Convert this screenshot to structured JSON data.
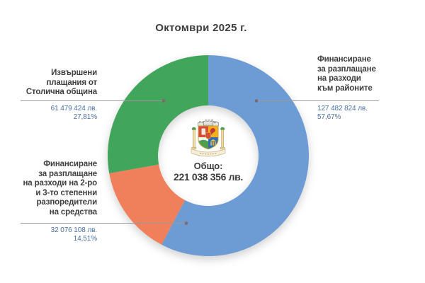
{
  "chart_data": {
    "type": "pie",
    "subtype": "donut",
    "title": "Октомври 2025 г.",
    "total_label": "Общо:",
    "total_value": 221038356,
    "total_value_text": "221 038 356 лв.",
    "start_angle_deg": 0,
    "direction": "clockwise",
    "legend_position": "outside-labels-with-leader-lines",
    "segments": [
      {
        "name": "raioni-financing",
        "label": "Финансиране за разплащане на разходи към районите",
        "label_lines": [
          "Финансиране",
          "за разплащане",
          "на разходи",
          "към районите"
        ],
        "value": 127482824,
        "value_text": "127 482 824 лв.",
        "percent": 57.67,
        "percent_text": "57,67%",
        "color": "#6D9BD3"
      },
      {
        "name": "stepenni-razporediteli-financing",
        "label": "Финансиране за разплащане на разходи на 2-ро и 3-то степенни разпоредители на средства",
        "label_lines": [
          "Финансиране",
          "за разплащане",
          "на разходи на 2-ро",
          "и 3-то степенни",
          "разпоредители",
          "на средства"
        ],
        "value": 32076108,
        "value_text": "32 076 108 лв.",
        "percent": 14.51,
        "percent_text": "14,51%",
        "color": "#F0805C"
      },
      {
        "name": "stolichna-obshtina-payments",
        "label": "Извършени плащания от Столична община",
        "label_lines": [
          "Извършени",
          "плащания от",
          "Столична община"
        ],
        "value": 61479424,
        "value_text": "61 479 424 лв.",
        "percent": 27.81,
        "percent_text": "27,81%",
        "color": "#42A55C"
      }
    ],
    "colors": {
      "label_text": "#3D3D3D",
      "value_text": "#4A70A4",
      "leader_line": "#9A9A9A",
      "leader_dot": "#80686B",
      "background": "#FFFFFF"
    }
  }
}
